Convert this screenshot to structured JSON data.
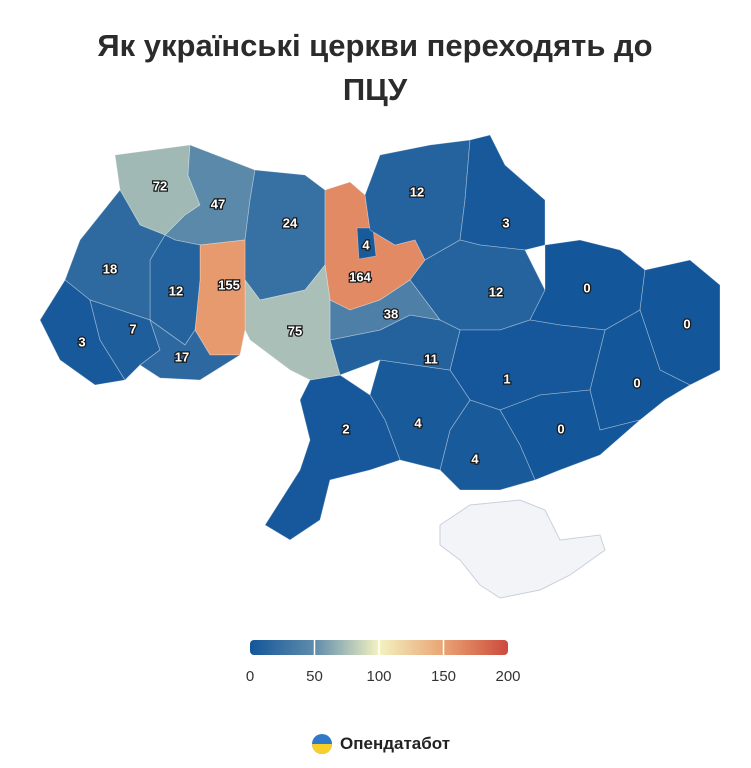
{
  "chart_data": {
    "type": "choropleth",
    "title": "Як українські церкви переходять до ПЦУ",
    "values": [
      72,
      47,
      24,
      164,
      4,
      12,
      3,
      12,
      0,
      0,
      0,
      1,
      0,
      4,
      4,
      2,
      11,
      38,
      75,
      155,
      12,
      18,
      3,
      7,
      17
    ],
    "colorbar": {
      "ticks": [
        0,
        50,
        100,
        150,
        200
      ],
      "colors": [
        "#13569a",
        "#5f8cab",
        "#f4f2c2",
        "#e9a373",
        "#cc4a3c"
      ]
    }
  },
  "footer": {
    "brand": "Опендатабот"
  }
}
